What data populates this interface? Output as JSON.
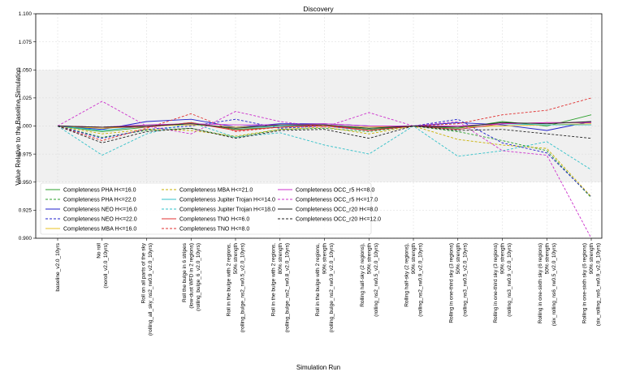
{
  "chart_data": {
    "type": "line",
    "title": "Discovery",
    "xlabel": "Simulation Run",
    "ylabel": "Value Relative to the Baseline Simulation",
    "ylim": [
      0.9,
      1.1
    ],
    "yticks": [
      "0.900",
      "0.925",
      "0.950",
      "0.975",
      "1.000",
      "1.025",
      "1.050",
      "1.075",
      "1.100"
    ],
    "grid": true,
    "legend_position": "lower-left",
    "shaded_band": [
      0.95,
      1.05
    ],
    "categories": [
      [
        "baseline_v2.0_10yrs"
      ],
      [
        "No roll",
        "(noroll_v2.0_10yrs)"
      ],
      [
        "Roll on all parts of the sky",
        "(rolling_all_sky_ns2_rw0.9_v2.0_10yrs)"
      ],
      [
        "Roll the bulge in 6 stripes",
        "(low-dust WFD in 2 regions)",
        "(rolling_bulge_6_v2.0_10yrs)"
      ],
      [
        "Roll in the bulge with 2 regions,",
        "50% strength",
        "(rolling_bulge_ns2_rw0.5_v2.0_10yrs)"
      ],
      [
        "Roll in the bulge with 2 regions,",
        "80% strength",
        "(rolling_bulge_ns2_rw0.8_v2.0_10yrs)"
      ],
      [
        "Roll in the bulge with 2 regions,",
        "90% strength",
        "(rolling_bulge_ns2_rw0.9_v2.0_10yrs)"
      ],
      [
        "Rolling half-sky (2 regions),",
        "50% strength",
        "(rolling_ns2_rw0.5_v2.0_10yrs)"
      ],
      [
        "Rolling half-sky (2 regions),",
        "90% strength",
        "(rolling_ns2_rw0.9_v2.0_10yrs)"
      ],
      [
        "Rolling in one-third sky (3 regions)",
        "50% strength",
        "(rolling_ns3_rw0.5_v2.0_10yrs)"
      ],
      [
        "Rolling in one-third sky (3 regions)",
        "90% strength",
        "(rolling_ns3_rw0.9_v2.0_10yrs)"
      ],
      [
        "Rolling in one-sixth sky (6 regions)",
        "50% strength",
        "(six_rolling_ns6_rw0.5_v2.0_10yrs)"
      ],
      [
        "Rolling in one-sixth sky (6 regions)",
        "90% strength",
        "(six_rolling_ns6_rw0.9_v2.0_10yrs)"
      ]
    ],
    "series": [
      {
        "name": "Completeness PHA H<=16.0",
        "color": "#2ca02c",
        "dash": "solid",
        "values": [
          1.0,
          0.995,
          0.999,
          1.003,
          0.997,
          0.999,
          1.001,
          0.997,
          1.0,
          0.998,
          1.004,
          1.0,
          1.01
        ]
      },
      {
        "name": "Completeness PHA H<=22.0",
        "color": "#2ca02c",
        "dash": "dashed",
        "values": [
          1.0,
          0.99,
          0.996,
          0.998,
          0.99,
          0.997,
          0.998,
          0.995,
          1.0,
          0.995,
          0.987,
          0.978,
          0.936
        ]
      },
      {
        "name": "Completeness NEO H<=16.0",
        "color": "#1f1fcc",
        "dash": "solid",
        "values": [
          1.0,
          0.997,
          1.004,
          1.006,
          0.999,
          1.002,
          1.002,
          1.0,
          1.0,
          1.003,
          1.001,
          0.996,
          1.004
        ]
      },
      {
        "name": "Completeness NEO H<=22.0",
        "color": "#1f1fcc",
        "dash": "dashed",
        "values": [
          1.0,
          0.989,
          0.997,
          1.0,
          1.006,
          0.998,
          1.0,
          0.996,
          1.0,
          1.006,
          0.985,
          0.976,
          0.937
        ]
      },
      {
        "name": "Completeness MBA H<=16.0",
        "color": "#e8c020",
        "dash": "solid",
        "values": [
          1.0,
          0.998,
          1.0,
          1.001,
          0.999,
          1.0,
          1.0,
          0.999,
          1.0,
          0.999,
          1.0,
          1.001,
          1.002
        ]
      },
      {
        "name": "Completeness MBA H<=21.0",
        "color": "#c8b000",
        "dash": "dashed",
        "values": [
          1.0,
          0.993,
          0.997,
          0.996,
          0.991,
          0.997,
          0.999,
          0.993,
          1.0,
          0.988,
          0.983,
          0.98,
          0.937
        ]
      },
      {
        "name": "Completeness Jupiter Trojan H<=14.0",
        "color": "#30c0c8",
        "dash": "solid",
        "values": [
          1.0,
          0.996,
          1.0,
          1.002,
          0.998,
          1.0,
          1.001,
          0.998,
          1.0,
          0.997,
          1.002,
          1.001,
          1.001
        ]
      },
      {
        "name": "Completeness Jupiter Trojan H<=18.0",
        "color": "#30c0c8",
        "dash": "dashed",
        "values": [
          1.0,
          0.974,
          0.993,
          1.003,
          0.99,
          0.994,
          0.983,
          0.975,
          1.0,
          0.973,
          0.978,
          0.986,
          0.961
        ]
      },
      {
        "name": "Completeness TNO H<=6.0",
        "color": "#e03030",
        "dash": "solid",
        "values": [
          1.0,
          0.999,
          0.999,
          1.003,
          0.996,
          0.999,
          1.001,
          0.996,
          1.0,
          0.997,
          1.002,
          1.003,
          1.003
        ]
      },
      {
        "name": "Completeness TNO H<=8.0",
        "color": "#e03030",
        "dash": "dashed",
        "values": [
          1.0,
          0.987,
          0.998,
          1.011,
          0.995,
          0.999,
          1.0,
          0.996,
          1.0,
          1.002,
          1.01,
          1.014,
          1.025
        ]
      },
      {
        "name": "Completeness OCC_r5 H<=8.0",
        "color": "#cc30cc",
        "dash": "solid",
        "values": [
          1.0,
          0.999,
          1.001,
          1.002,
          1.001,
          1.001,
          1.002,
          1.0,
          1.0,
          1.0,
          1.002,
          1.003,
          1.003
        ]
      },
      {
        "name": "Completeness OCC_r5 H<=17.0",
        "color": "#cc30cc",
        "dash": "dashed",
        "values": [
          1.0,
          1.022,
          1.0,
          0.993,
          1.013,
          1.004,
          0.999,
          1.012,
          1.0,
          1.004,
          0.978,
          0.974,
          0.9
        ]
      },
      {
        "name": "Completeness OCC_r20 H<=8.0",
        "color": "#222222",
        "dash": "solid",
        "values": [
          1.0,
          0.999,
          1.0,
          1.002,
          0.998,
          1.001,
          1.001,
          0.998,
          1.0,
          0.999,
          1.003,
          1.002,
          1.004
        ]
      },
      {
        "name": "Completeness OCC_r20 H<=12.0",
        "color": "#222222",
        "dash": "dashed",
        "values": [
          1.0,
          0.985,
          0.995,
          0.998,
          0.989,
          0.996,
          0.997,
          0.989,
          1.0,
          0.996,
          0.997,
          0.993,
          0.989
        ]
      }
    ]
  }
}
